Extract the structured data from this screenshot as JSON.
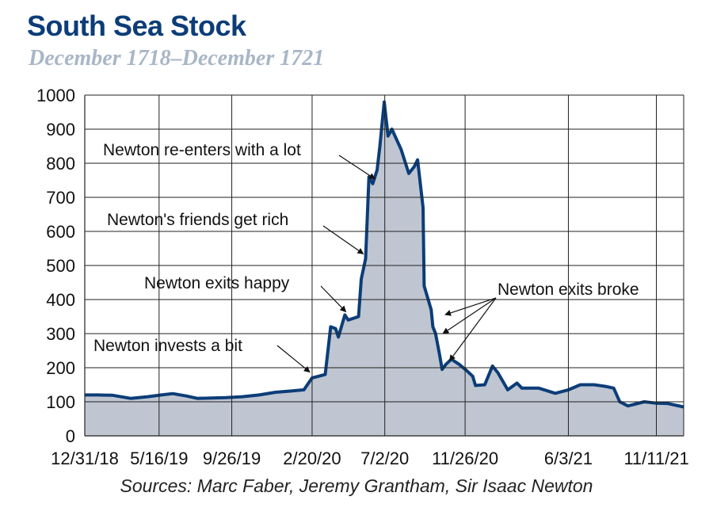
{
  "title": "South Sea Stock",
  "subtitle": "December 1718–December 1721",
  "sources": "Sources: Marc Faber, Jeremy Grantham, Sir Isaac Newton",
  "colors": {
    "title": "#0c3d78",
    "line": "#0c3d78",
    "fill": "#bfc6d1",
    "subtitle": "#a8b6c7"
  },
  "chart_data": {
    "type": "area",
    "title": "South Sea Stock",
    "subtitle": "December 1718–December 1721",
    "xlabel": "",
    "ylabel": "",
    "ylim": [
      0,
      1000
    ],
    "yticks": [
      0,
      100,
      200,
      300,
      400,
      500,
      600,
      700,
      800,
      900,
      1000
    ],
    "xlim": [
      "1718-12-31",
      "1721-12-31"
    ],
    "xticks": [
      {
        "date": "1718-12-31",
        "label": "12/31/18"
      },
      {
        "date": "1719-05-16",
        "label": "5/16/19"
      },
      {
        "date": "1719-09-26",
        "label": "9/26/19"
      },
      {
        "date": "1720-02-20",
        "label": "2/20/20"
      },
      {
        "date": "1720-07-02",
        "label": "7/2/20"
      },
      {
        "date": "1720-11-26",
        "label": "11/26/20"
      },
      {
        "date": "1721-06-03",
        "label": "6/3/21"
      },
      {
        "date": "1721-11-11",
        "label": "11/11/21"
      }
    ],
    "grid": true,
    "series": [
      {
        "name": "",
        "points": [
          [
            "1718-12-31",
            120
          ],
          [
            "1719-01-25",
            120
          ],
          [
            "1719-02-20",
            119
          ],
          [
            "1719-03-25",
            110
          ],
          [
            "1719-04-25",
            115
          ],
          [
            "1719-05-20",
            120
          ],
          [
            "1719-06-10",
            124
          ],
          [
            "1719-07-05",
            117
          ],
          [
            "1719-07-25",
            110
          ],
          [
            "1719-09-15",
            112
          ],
          [
            "1719-10-15",
            115
          ],
          [
            "1719-11-15",
            120
          ],
          [
            "1719-12-15",
            128
          ],
          [
            "1720-01-15",
            132
          ],
          [
            "1720-02-05",
            135
          ],
          [
            "1720-02-20",
            170
          ],
          [
            "1720-03-15",
            180
          ],
          [
            "1720-03-25",
            320
          ],
          [
            "1720-04-03",
            315
          ],
          [
            "1720-04-08",
            290
          ],
          [
            "1720-04-20",
            355
          ],
          [
            "1720-04-26",
            340
          ],
          [
            "1720-05-15",
            350
          ],
          [
            "1720-05-20",
            460
          ],
          [
            "1720-05-28",
            520
          ],
          [
            "1720-06-03",
            760
          ],
          [
            "1720-06-10",
            740
          ],
          [
            "1720-06-18",
            780
          ],
          [
            "1720-06-23",
            850
          ],
          [
            "1720-07-01",
            980
          ],
          [
            "1720-07-08",
            880
          ],
          [
            "1720-07-15",
            900
          ],
          [
            "1720-08-01",
            840
          ],
          [
            "1720-08-15",
            770
          ],
          [
            "1720-08-25",
            790
          ],
          [
            "1720-08-31",
            810
          ],
          [
            "1720-09-10",
            670
          ],
          [
            "1720-09-12",
            440
          ],
          [
            "1720-09-25",
            370
          ],
          [
            "1720-09-28",
            320
          ],
          [
            "1720-10-03",
            300
          ],
          [
            "1720-10-10",
            240
          ],
          [
            "1720-10-15",
            195
          ],
          [
            "1720-10-22",
            210
          ],
          [
            "1720-11-01",
            225
          ],
          [
            "1720-11-15",
            210
          ],
          [
            "1720-11-30",
            190
          ],
          [
            "1720-12-10",
            175
          ],
          [
            "1720-12-15",
            148
          ],
          [
            "1721-01-01",
            150
          ],
          [
            "1721-01-15",
            205
          ],
          [
            "1721-01-25",
            185
          ],
          [
            "1721-02-12",
            135
          ],
          [
            "1721-03-01",
            155
          ],
          [
            "1721-03-10",
            140
          ],
          [
            "1721-04-10",
            140
          ],
          [
            "1721-05-10",
            125
          ],
          [
            "1721-06-03",
            135
          ],
          [
            "1721-06-25",
            150
          ],
          [
            "1721-07-20",
            150
          ],
          [
            "1721-08-10",
            145
          ],
          [
            "1721-08-25",
            140
          ],
          [
            "1721-09-05",
            100
          ],
          [
            "1721-09-20",
            88
          ],
          [
            "1721-10-20",
            100
          ],
          [
            "1721-11-10",
            96
          ],
          [
            "1721-12-01",
            95
          ],
          [
            "1721-12-31",
            85
          ]
        ]
      }
    ],
    "annotations": [
      {
        "text": "Newton invests a bit",
        "date": "1720-02-20",
        "value": 178
      },
      {
        "text": "Newton exits happy",
        "date": "1720-04-26",
        "value": 355
      },
      {
        "text": "Newton's friends get rich",
        "date": "1720-05-28",
        "value": 525
      },
      {
        "text": "Newton re-enters with a lot",
        "date": "1720-06-18",
        "value": 745
      },
      {
        "text": "Newton exits broke",
        "targets": [
          {
            "date": "1720-10-12",
            "value": 365
          },
          {
            "date": "1720-10-08",
            "value": 310
          },
          {
            "date": "1720-10-20",
            "value": 230
          }
        ]
      }
    ]
  }
}
